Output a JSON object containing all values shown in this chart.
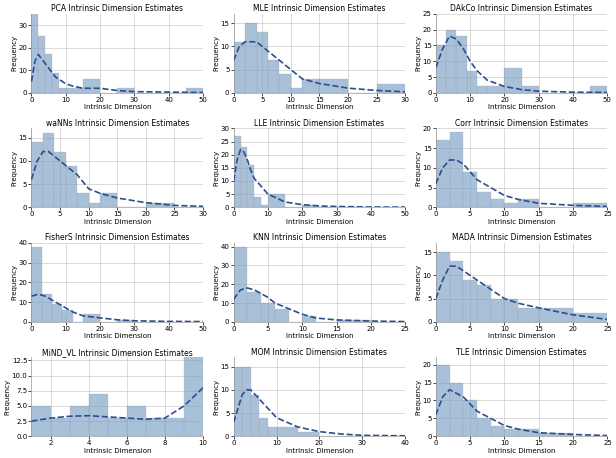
{
  "subplots": [
    {
      "title": "PCA Intrinsic Dimension Estimates",
      "xlabel": "Intrinsic Dimension",
      "ylabel": "Frequency",
      "xlim": [
        0,
        50
      ],
      "ylim": [
        0,
        35
      ],
      "yticks": [
        0,
        10,
        20,
        30
      ],
      "xticks": [
        0,
        10,
        20,
        30,
        40,
        50
      ],
      "bin_edges": [
        0,
        2,
        4,
        6,
        8,
        10,
        15,
        20,
        25,
        30,
        35,
        40,
        45,
        50
      ],
      "bar_heights": [
        35,
        25,
        17,
        9,
        2,
        2,
        6,
        0,
        2,
        0,
        0,
        0,
        2
      ],
      "kde_x": [
        0,
        1,
        2,
        3,
        4,
        5,
        6,
        7,
        8,
        10,
        12,
        15,
        20,
        25,
        30,
        40,
        50
      ],
      "kde_y": [
        5,
        14,
        17,
        15,
        13,
        11,
        9,
        7,
        6,
        4,
        3,
        2,
        2,
        1,
        0.5,
        0.3,
        0.1
      ]
    },
    {
      "title": "MLE Intrinsic Dimension Estimates",
      "xlabel": "Intrinsic Dimension",
      "ylabel": "Frequency",
      "xlim": [
        0,
        30
      ],
      "ylim": [
        0,
        17
      ],
      "yticks": [
        0,
        5,
        10,
        15
      ],
      "xticks": [
        0,
        5,
        10,
        15,
        20,
        25,
        30
      ],
      "bin_edges": [
        0,
        2,
        4,
        6,
        8,
        10,
        12,
        15,
        20,
        25,
        30
      ],
      "bar_heights": [
        11,
        15,
        13,
        7,
        4,
        1,
        3,
        3,
        0,
        2
      ],
      "kde_x": [
        0,
        1,
        2,
        3,
        4,
        5,
        6,
        8,
        10,
        12,
        15,
        20,
        25,
        30
      ],
      "kde_y": [
        7,
        10,
        11,
        11,
        11,
        10,
        9,
        7,
        5,
        3,
        2,
        1,
        0.5,
        0.2
      ]
    },
    {
      "title": "DAkCo Intrinsic Dimension Estimates",
      "xlabel": "Intrinsic Dimension",
      "ylabel": "Frequency",
      "xlim": [
        0,
        50
      ],
      "ylim": [
        0,
        25
      ],
      "yticks": [
        0,
        5,
        10,
        15,
        20,
        25
      ],
      "xticks": [
        0,
        10,
        20,
        30,
        40,
        50
      ],
      "bin_edges": [
        0,
        3,
        6,
        9,
        12,
        15,
        20,
        25,
        30,
        35,
        40,
        45,
        50
      ],
      "bar_heights": [
        15,
        20,
        18,
        7,
        2,
        2,
        8,
        2,
        0,
        0,
        0,
        2
      ],
      "kde_x": [
        0,
        2,
        4,
        6,
        8,
        10,
        12,
        15,
        20,
        25,
        30,
        40,
        50
      ],
      "kde_y": [
        8,
        14,
        18,
        17,
        14,
        10,
        7,
        4,
        2,
        1,
        0.5,
        0.2,
        0.1
      ]
    },
    {
      "title": "waNNs Intrinsic Dimension Estimates",
      "xlabel": "Intrinsic Dimension",
      "ylabel": "Frequency",
      "xlim": [
        0,
        30
      ],
      "ylim": [
        0,
        17
      ],
      "yticks": [
        0,
        5,
        10,
        15
      ],
      "xticks": [
        0,
        5,
        10,
        15,
        20,
        25,
        30
      ],
      "bin_edges": [
        0,
        2,
        4,
        6,
        8,
        10,
        12,
        15,
        20,
        25,
        30
      ],
      "bar_heights": [
        14,
        16,
        12,
        9,
        3,
        1,
        3,
        0,
        1,
        0
      ],
      "kde_x": [
        0,
        1,
        2,
        3,
        4,
        5,
        6,
        8,
        10,
        12,
        15,
        20,
        25,
        30
      ],
      "kde_y": [
        6,
        10,
        12,
        12,
        11,
        10,
        9,
        7,
        4,
        3,
        2,
        1,
        0.4,
        0.2
      ]
    },
    {
      "title": "LLE Intrinsic Dimension Estimates",
      "xlabel": "Intrinsic Dimension",
      "ylabel": "Frequency",
      "xlim": [
        0,
        50
      ],
      "ylim": [
        0,
        30
      ],
      "yticks": [
        0,
        5,
        10,
        15,
        20,
        25,
        30
      ],
      "xticks": [
        0,
        10,
        20,
        30,
        40,
        50
      ],
      "bin_edges": [
        0,
        2,
        4,
        6,
        8,
        10,
        15,
        20,
        25,
        30,
        40,
        50
      ],
      "bar_heights": [
        27,
        23,
        16,
        4,
        1,
        5,
        0,
        1,
        0,
        0,
        0
      ],
      "kde_x": [
        0,
        1,
        2,
        3,
        4,
        5,
        6,
        8,
        10,
        15,
        20,
        25,
        30,
        40,
        50
      ],
      "kde_y": [
        10,
        18,
        22,
        21,
        18,
        14,
        11,
        8,
        5,
        2,
        1,
        0.5,
        0.3,
        0.1,
        0.05
      ]
    },
    {
      "title": "Corr Intrinsic Dimension Estimates",
      "xlabel": "Intrinsic Dimension",
      "ylabel": "Frequency",
      "xlim": [
        0,
        25
      ],
      "ylim": [
        0,
        20
      ],
      "yticks": [
        0,
        5,
        10,
        15,
        20
      ],
      "xticks": [
        0,
        5,
        10,
        15,
        20,
        25
      ],
      "bin_edges": [
        0,
        2,
        4,
        6,
        8,
        10,
        12,
        15,
        20,
        25
      ],
      "bar_heights": [
        17,
        19,
        9,
        4,
        2,
        1,
        2,
        0,
        1
      ],
      "kde_x": [
        0,
        1,
        2,
        3,
        4,
        5,
        6,
        8,
        10,
        12,
        15,
        20,
        25
      ],
      "kde_y": [
        6,
        10,
        12,
        12,
        11,
        9,
        7,
        5,
        3,
        2,
        1,
        0.5,
        0.2
      ]
    },
    {
      "title": "FisherS Intrinsic Dimension Estimates",
      "xlabel": "Intrinsic Dimension",
      "ylabel": "Frequency",
      "xlim": [
        0,
        50
      ],
      "ylim": [
        0,
        40
      ],
      "yticks": [
        0,
        10,
        20,
        30,
        40
      ],
      "xticks": [
        0,
        10,
        20,
        30,
        40,
        50
      ],
      "bin_edges": [
        0,
        3,
        6,
        9,
        12,
        15,
        20,
        25,
        30,
        35,
        40,
        50
      ],
      "bar_heights": [
        38,
        14,
        9,
        6,
        0,
        4,
        0,
        1,
        0,
        0,
        0
      ],
      "kde_x": [
        0,
        2,
        4,
        6,
        8,
        10,
        12,
        15,
        20,
        25,
        30,
        40,
        50
      ],
      "kde_y": [
        13,
        14,
        13,
        11,
        9,
        7,
        5,
        3,
        2,
        1,
        0.5,
        0.2,
        0.1
      ]
    },
    {
      "title": "KNN Intrinsic Dimension Estimates",
      "xlabel": "Intrinsic Dimension",
      "ylabel": "Frequency",
      "xlim": [
        0,
        25
      ],
      "ylim": [
        0,
        42
      ],
      "yticks": [
        0,
        10,
        20,
        30,
        40
      ],
      "xticks": [
        0,
        5,
        10,
        15,
        20,
        25
      ],
      "bin_edges": [
        0,
        2,
        4,
        6,
        8,
        10,
        12,
        15,
        20,
        25
      ],
      "bar_heights": [
        40,
        16,
        10,
        7,
        0,
        3,
        0,
        1,
        0
      ],
      "kde_x": [
        0,
        1,
        2,
        3,
        4,
        5,
        6,
        8,
        10,
        12,
        15,
        20,
        25
      ],
      "kde_y": [
        12,
        17,
        18,
        17,
        15,
        13,
        10,
        7,
        4,
        2,
        1,
        0.4,
        0.1
      ]
    },
    {
      "title": "MADA Intrinsic Dimension Estimates",
      "xlabel": "Intrinsic Dimension",
      "ylabel": "Frequency",
      "xlim": [
        0,
        25
      ],
      "ylim": [
        0,
        17
      ],
      "yticks": [
        0,
        5,
        10,
        15
      ],
      "xticks": [
        0,
        5,
        10,
        15,
        20,
        25
      ],
      "bin_edges": [
        0,
        2,
        4,
        6,
        8,
        10,
        12,
        15,
        20,
        25
      ],
      "bar_heights": [
        15,
        13,
        9,
        8,
        5,
        5,
        3,
        3,
        2
      ],
      "kde_x": [
        0,
        1,
        2,
        3,
        4,
        5,
        6,
        8,
        10,
        12,
        15,
        20,
        25
      ],
      "kde_y": [
        5,
        9,
        12,
        12,
        11,
        10,
        9,
        7,
        5,
        4,
        3,
        1.5,
        0.5
      ]
    },
    {
      "title": "MiND_VL Intrinsic Dimension Estimates",
      "xlabel": "Intrinsic Dimension",
      "ylabel": "Frequency",
      "xlim": [
        1,
        10
      ],
      "ylim": [
        0,
        13
      ],
      "yticks": [
        0.0,
        2.5,
        5.0,
        7.5,
        10.0,
        12.5
      ],
      "xticks": [
        2,
        4,
        6,
        8,
        10
      ],
      "bin_edges": [
        1,
        2,
        3,
        4,
        5,
        6,
        7,
        8,
        9,
        10
      ],
      "bar_heights": [
        5,
        3,
        5,
        7,
        3,
        5,
        3,
        3,
        13
      ],
      "kde_x": [
        1,
        2,
        3,
        4,
        5,
        6,
        7,
        8,
        9,
        10
      ],
      "kde_y": [
        2.5,
        3.0,
        3.3,
        3.4,
        3.2,
        3.0,
        2.8,
        3.0,
        5.0,
        8.0
      ]
    },
    {
      "title": "MOM Intrinsic Dimension Estimates",
      "xlabel": "Intrinsic Dimension",
      "ylabel": "Frequency",
      "xlim": [
        0,
        40
      ],
      "ylim": [
        0,
        17
      ],
      "yticks": [
        0,
        5,
        10,
        15
      ],
      "xticks": [
        0,
        10,
        20,
        30,
        40
      ],
      "bin_edges": [
        0,
        2,
        4,
        6,
        8,
        10,
        15,
        20,
        25,
        30,
        40
      ],
      "bar_heights": [
        15,
        15,
        9,
        4,
        2,
        2,
        1,
        0,
        0,
        0
      ],
      "kde_x": [
        0,
        1,
        2,
        3,
        4,
        5,
        6,
        8,
        10,
        15,
        20,
        25,
        30,
        40
      ],
      "kde_y": [
        3,
        6,
        9,
        10,
        10,
        9,
        8,
        6,
        4,
        2,
        1,
        0.5,
        0.2,
        0.1
      ]
    },
    {
      "title": "TLE Intrinsic Dimension Estimates",
      "xlabel": "Intrinsic Dimension",
      "ylabel": "Frequency",
      "xlim": [
        0,
        25
      ],
      "ylim": [
        0,
        22
      ],
      "yticks": [
        0,
        5,
        10,
        15,
        20
      ],
      "xticks": [
        0,
        5,
        10,
        15,
        20,
        25
      ],
      "bin_edges": [
        0,
        2,
        4,
        6,
        8,
        10,
        12,
        15,
        20,
        25
      ],
      "bar_heights": [
        20,
        15,
        10,
        5,
        3,
        2,
        2,
        1,
        0
      ],
      "kde_x": [
        0,
        1,
        2,
        3,
        4,
        5,
        6,
        8,
        10,
        12,
        15,
        20,
        25
      ],
      "kde_y": [
        6,
        11,
        13,
        12,
        11,
        9,
        7,
        5,
        3,
        2,
        1,
        0.5,
        0.2
      ]
    }
  ],
  "bar_color": "#7b9ec5",
  "bar_alpha": 0.65,
  "bar_edgecolor": "#aaaaaa",
  "kde_color": "#2c4f8c",
  "kde_linewidth": 1.2,
  "kde_linestyle": "--",
  "grid_color": "#cccccc",
  "grid_linewidth": 0.5,
  "title_fontsize": 5.5,
  "label_fontsize": 5,
  "tick_fontsize": 5,
  "figsize": [
    6.16,
    4.58
  ],
  "dpi": 100
}
